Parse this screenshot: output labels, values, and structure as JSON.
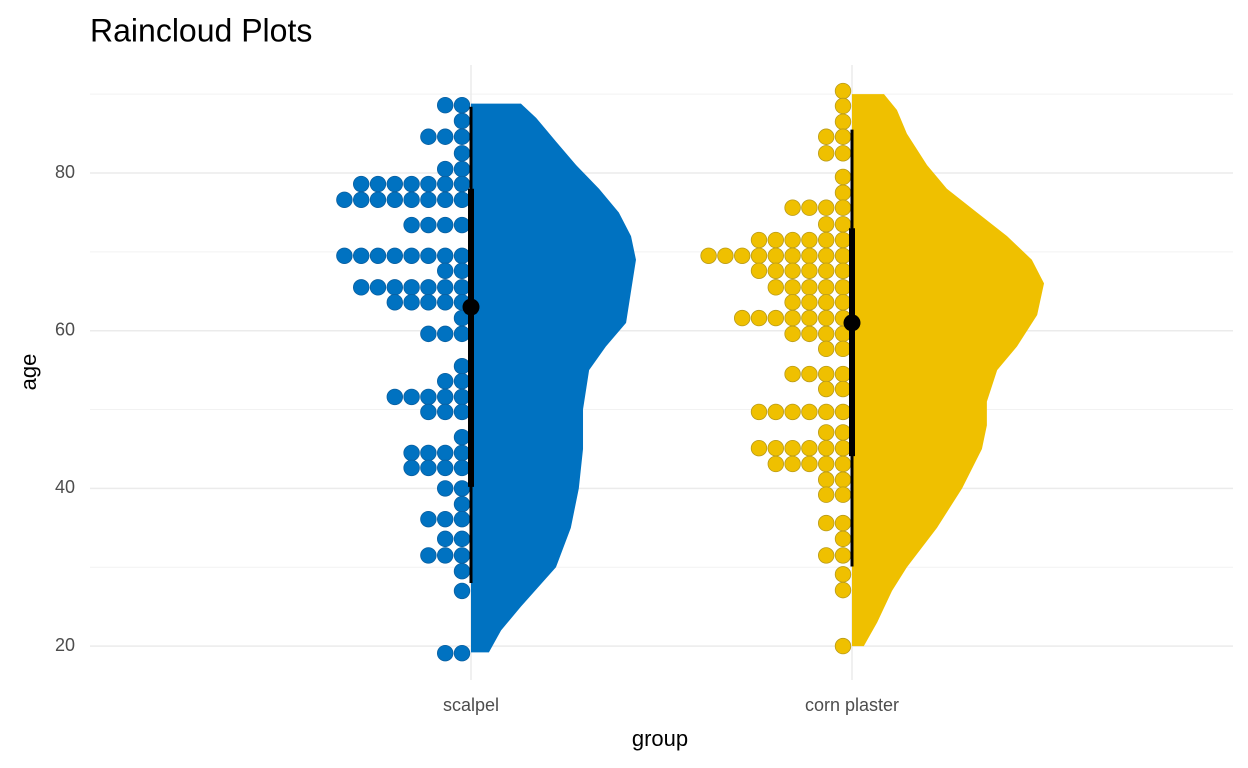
{
  "chart_data": {
    "type": "raincloud",
    "title": "Raincloud Plots",
    "x_label": "group",
    "y_label": "age",
    "ylim": [
      15.7,
      93.7
    ],
    "yticks": [
      20,
      40,
      60,
      80
    ],
    "y_minor_ticks": [
      30,
      50,
      70,
      90
    ],
    "grid": true,
    "categories": [
      "scalpel",
      "corn plaster"
    ],
    "groups": [
      {
        "color": "#0072c1",
        "outline": "#0a5fa0",
        "dot_ages": [
          88.6,
          86.6,
          84.6,
          82.5,
          80.5,
          78.6,
          76.6,
          73.4,
          69.5,
          67.6,
          65.5,
          63.6,
          61.6,
          59.6,
          55.5,
          53.6,
          51.6,
          49.7,
          46.5,
          44.5,
          42.6,
          40.0,
          38.0,
          36.1,
          33.6,
          31.5,
          29.5,
          27.0,
          19.1
        ],
        "dot_counts": [
          2,
          1,
          3,
          1,
          2,
          7,
          8,
          4,
          8,
          2,
          7,
          5,
          1,
          3,
          1,
          2,
          5,
          3,
          1,
          4,
          4,
          2,
          1,
          3,
          2,
          3,
          1,
          1,
          2
        ],
        "density": {
          "ages": [
            19.2,
            22,
            25,
            30,
            35,
            40,
            45,
            50,
            55,
            58,
            61,
            65,
            69,
            72,
            75,
            78,
            81,
            84,
            87,
            88.8
          ],
          "widths": [
            0.047,
            0.079,
            0.131,
            0.223,
            0.262,
            0.283,
            0.294,
            0.294,
            0.31,
            0.354,
            0.407,
            0.42,
            0.433,
            0.42,
            0.388,
            0.336,
            0.276,
            0.223,
            0.171,
            0.131
          ]
        },
        "median": 63,
        "thick_interval": [
          40.2,
          78.0
        ],
        "thin_interval": [
          28.0,
          88.4
        ]
      },
      {
        "color": "#efc000",
        "outline": "#b89a1a",
        "dot_ages": [
          90.4,
          88.5,
          86.5,
          84.6,
          82.5,
          79.5,
          77.5,
          75.6,
          73.5,
          71.5,
          69.5,
          67.6,
          65.5,
          63.6,
          61.6,
          59.6,
          57.7,
          54.5,
          52.6,
          49.7,
          47.1,
          45.1,
          43.1,
          41.1,
          39.2,
          35.6,
          33.6,
          31.5,
          29.1,
          27.1,
          20.0
        ],
        "dot_counts": [
          1,
          1,
          1,
          2,
          2,
          1,
          1,
          4,
          2,
          6,
          9,
          6,
          5,
          4,
          7,
          4,
          2,
          4,
          2,
          6,
          2,
          6,
          5,
          2,
          2,
          2,
          1,
          2,
          1,
          1,
          1
        ],
        "density": {
          "ages": [
            20,
            23,
            27,
            30,
            35,
            40,
            45,
            48,
            51,
            55,
            58,
            62,
            66,
            69,
            72,
            75,
            78,
            81,
            85,
            88,
            90
          ],
          "widths": [
            0.031,
            0.066,
            0.105,
            0.144,
            0.223,
            0.289,
            0.341,
            0.354,
            0.354,
            0.381,
            0.433,
            0.486,
            0.504,
            0.472,
            0.407,
            0.328,
            0.249,
            0.197,
            0.144,
            0.118,
            0.084
          ]
        },
        "median": 61,
        "thick_interval": [
          44.1,
          73.0
        ],
        "thin_interval": [
          30.1,
          85.5
        ]
      }
    ]
  }
}
